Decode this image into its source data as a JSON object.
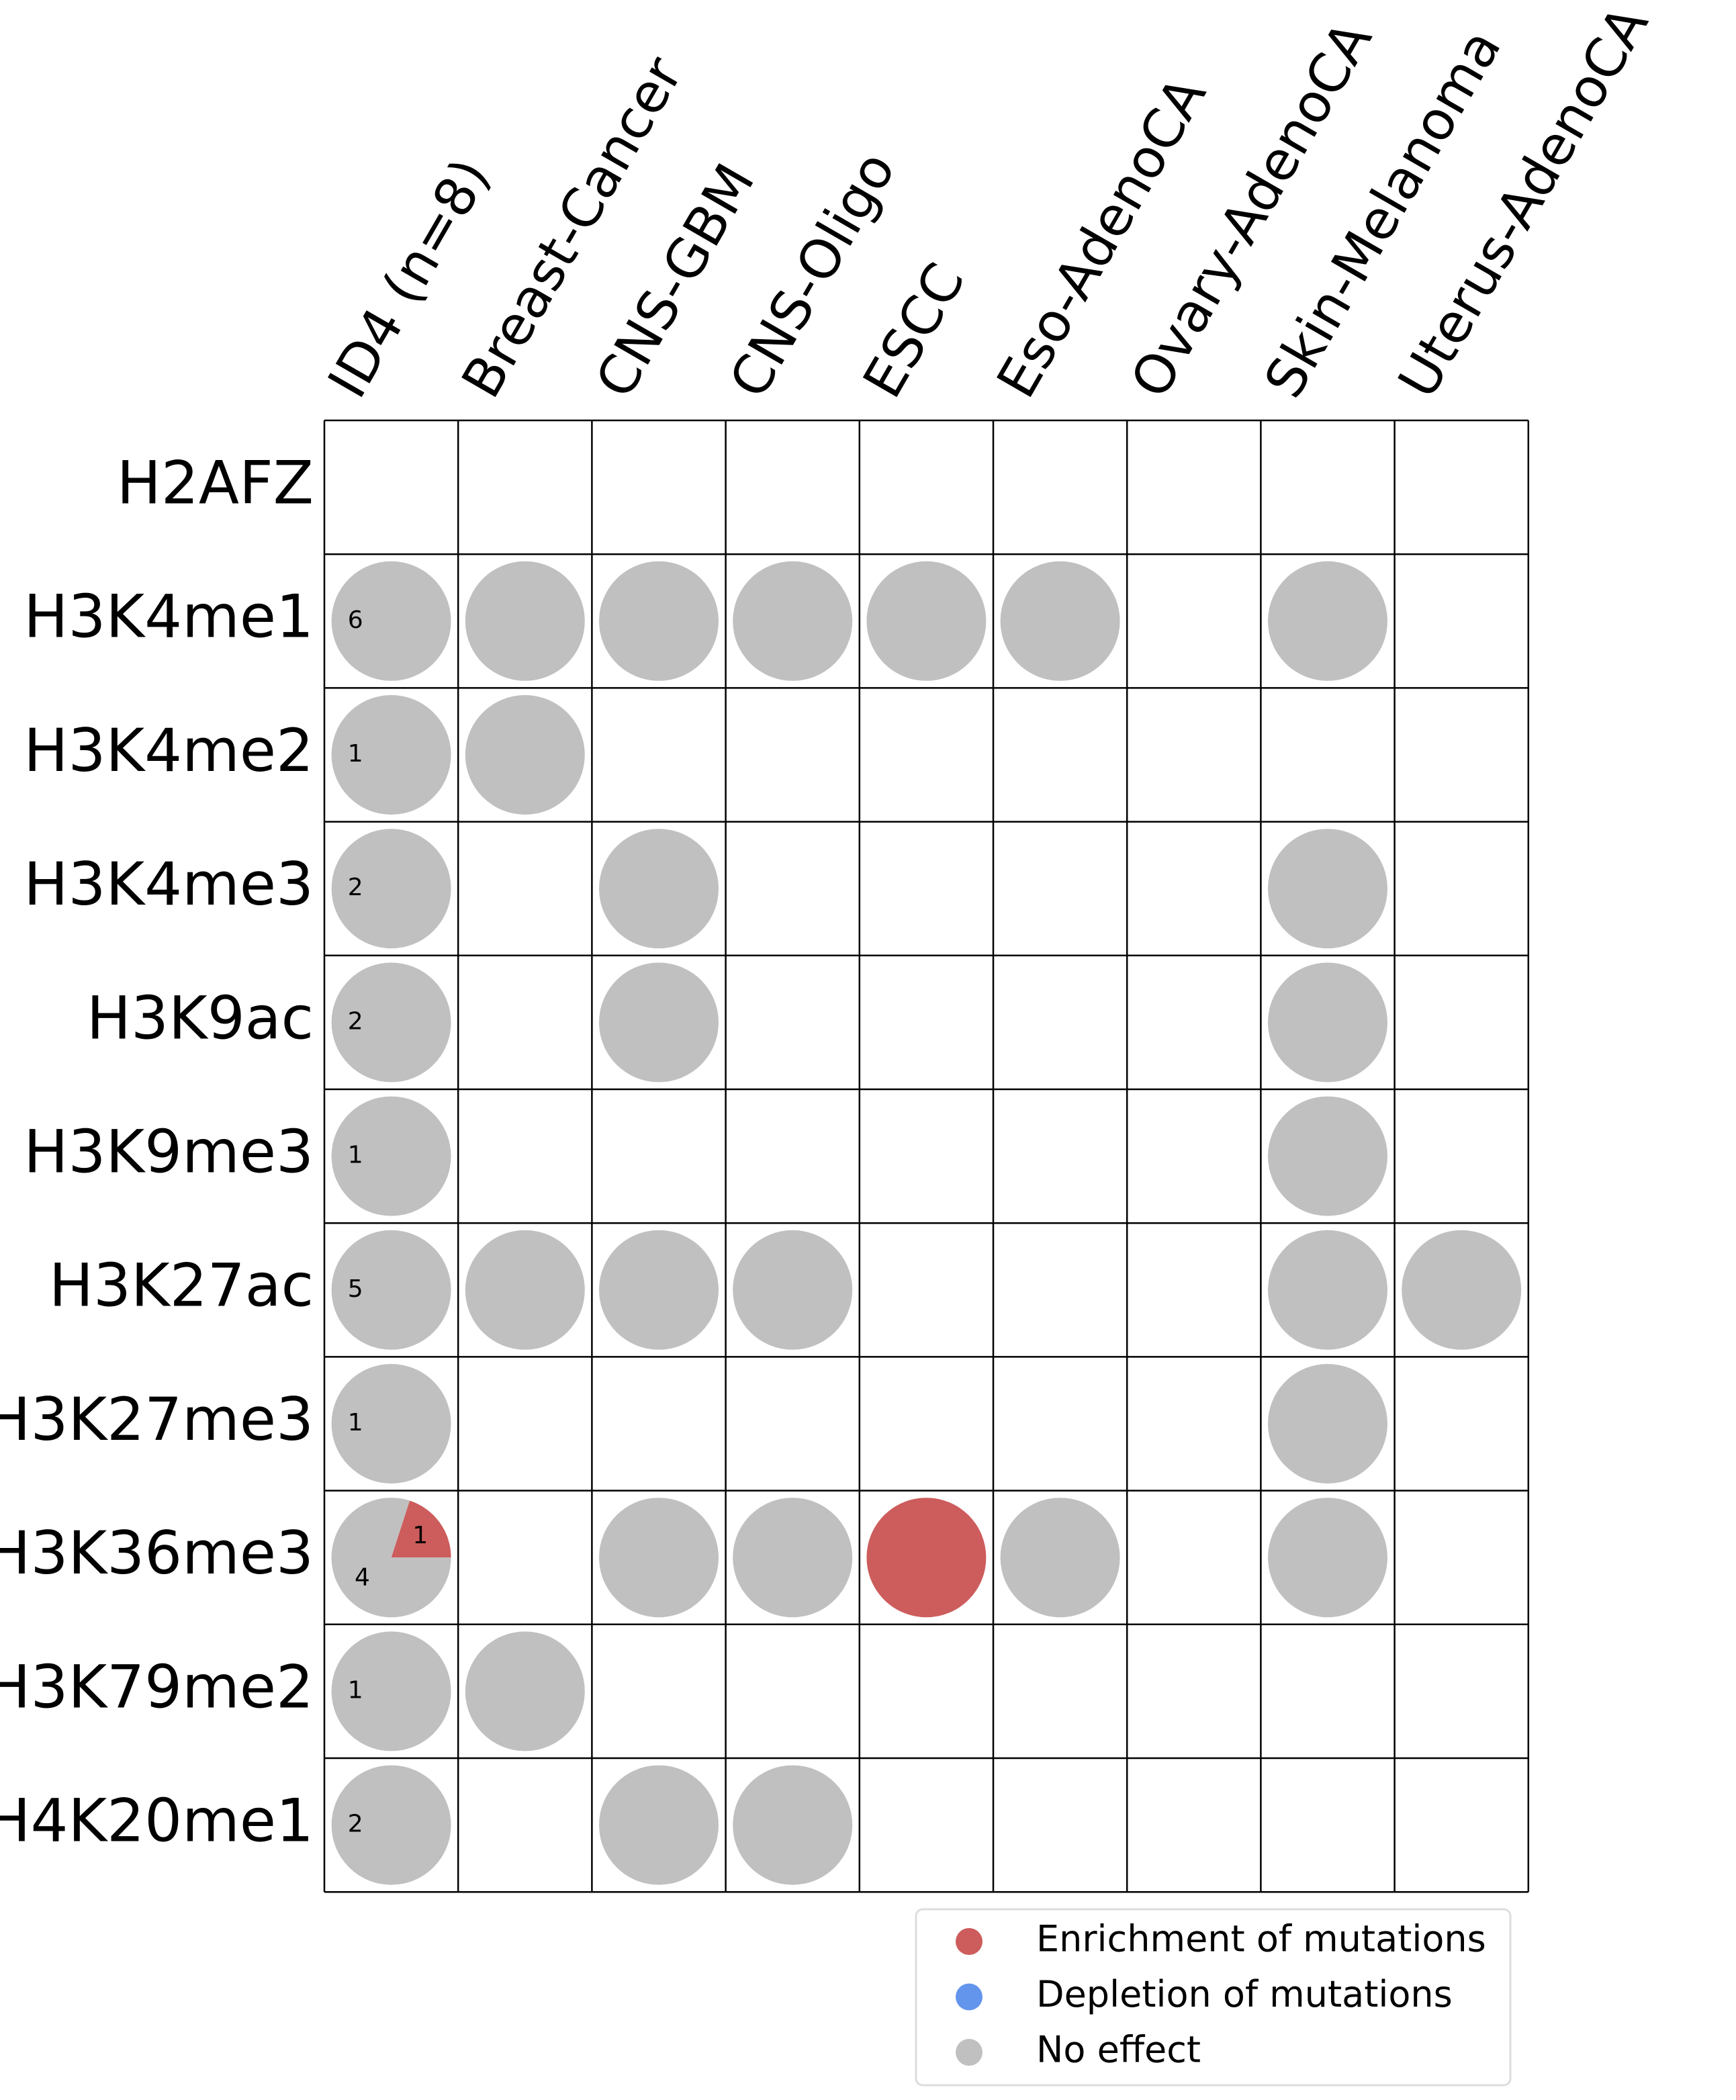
{
  "chart_data": {
    "type": "dotgrid",
    "columns": [
      "ID4 (n=8)",
      "Breast-Cancer",
      "CNS-GBM",
      "CNS-Oligo",
      "ESCC",
      "Eso-AdenoCA",
      "Ovary-AdenoCA",
      "Skin-Melanoma",
      "Uterus-AdenoCA"
    ],
    "rows": [
      "H2AFZ",
      "H3K4me1",
      "H3K4me2",
      "H3K4me3",
      "H3K9ac",
      "H3K9me3",
      "H3K27ac",
      "H3K27me3",
      "H3K36me3",
      "H3K79me2",
      "H4K20me1"
    ],
    "series": [
      {
        "name": "Enrichment of mutations",
        "color": "#cd5c5c",
        "values": [
          null,
          null,
          null,
          null,
          null,
          null,
          null,
          null,
          1,
          null,
          null
        ]
      },
      {
        "name": "Depletion of mutations",
        "color": "#6495ed",
        "values": [
          null,
          null,
          null,
          null,
          null,
          null,
          null,
          null,
          null,
          null,
          null
        ]
      },
      {
        "name": "No effect",
        "color": "#c0c0c0",
        "values": [
          null,
          6,
          1,
          2,
          2,
          1,
          5,
          1,
          4,
          1,
          2
        ]
      }
    ],
    "cells": [
      [
        null,
        null,
        null,
        null,
        null,
        null,
        null,
        null,
        null
      ],
      [
        null,
        2,
        2,
        2,
        2,
        2,
        null,
        2,
        null
      ],
      [
        null,
        2,
        null,
        null,
        null,
        null,
        null,
        null,
        null
      ],
      [
        null,
        null,
        2,
        null,
        null,
        null,
        null,
        2,
        null
      ],
      [
        null,
        null,
        2,
        null,
        null,
        null,
        null,
        2,
        null
      ],
      [
        null,
        null,
        null,
        null,
        null,
        null,
        null,
        2,
        null
      ],
      [
        null,
        2,
        2,
        2,
        null,
        null,
        null,
        2,
        2
      ],
      [
        null,
        null,
        null,
        null,
        null,
        null,
        null,
        2,
        null
      ],
      [
        null,
        null,
        2,
        2,
        0,
        2,
        null,
        2,
        null
      ],
      [
        null,
        2,
        null,
        null,
        null,
        null,
        null,
        null,
        null
      ],
      [
        null,
        null,
        2,
        2,
        null,
        null,
        null,
        null,
        null
      ]
    ]
  }
}
